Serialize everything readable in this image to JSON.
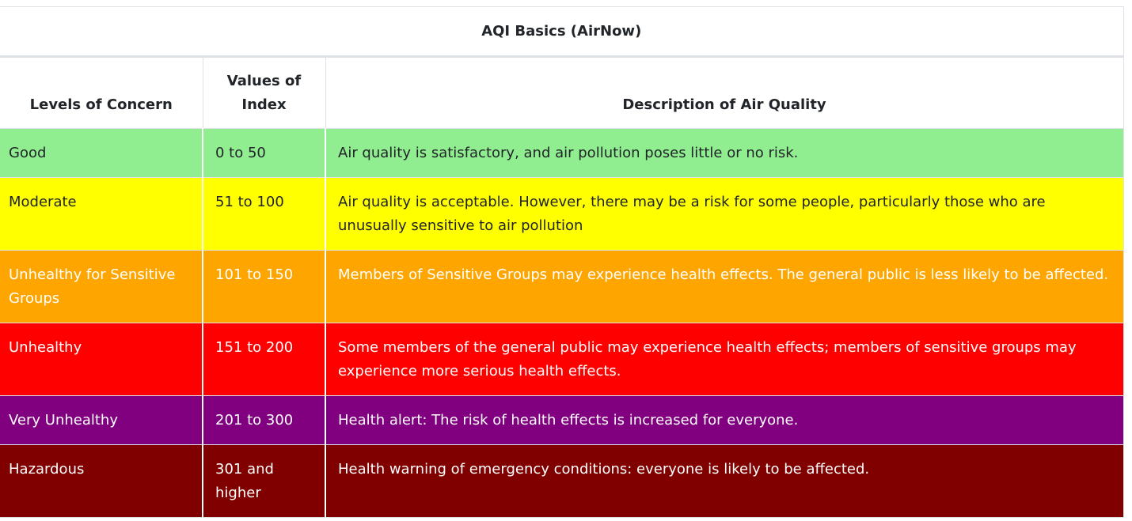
{
  "table": {
    "caption": "AQI Basics (AirNow)",
    "headers": {
      "level": "Levels of Concern",
      "values": "Values of Index",
      "description": "Description of Air Quality"
    },
    "rows": [
      {
        "level": "Good",
        "values": "0 to 50",
        "description": "Air quality is satisfactory, and air pollution poses little or no risk.",
        "color": "#90ee90"
      },
      {
        "level": "Moderate",
        "values": "51 to 100",
        "description": "Air quality is acceptable. However, there may be a risk for some people, particularly those who are unusually sensitive to air pollution",
        "color": "#ffff00"
      },
      {
        "level": "Unhealthy for Sensitive Groups",
        "values": "101 to 150",
        "description": "Members of Sensitive Groups may experience health effects. The general public is less likely to be affected.",
        "color": "#ffa500"
      },
      {
        "level": "Unhealthy",
        "values": "151 to 200",
        "description": "Some members of the general public may experience health effects; members of sensitive groups may experience more serious health effects.",
        "color": "#ff0000"
      },
      {
        "level": "Very Unhealthy",
        "values": "201 to 300",
        "description": "Health alert: The risk of health effects is increased for everyone.",
        "color": "#800080"
      },
      {
        "level": "Hazardous",
        "values": "301 and higher",
        "description": "Health warning of emergency conditions: everyone is likely to be affected.",
        "color": "#800000"
      }
    ]
  }
}
